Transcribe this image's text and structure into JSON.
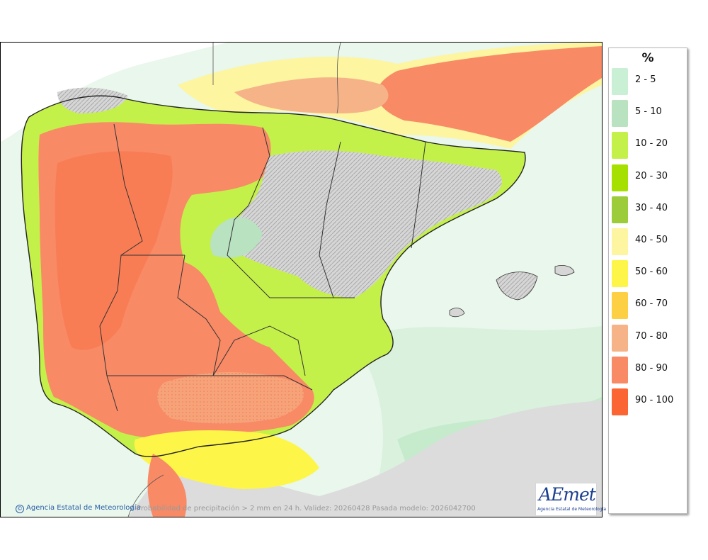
{
  "legend": {
    "title": "%",
    "items": [
      {
        "label": "2 - 5",
        "color": "#c9f0d4"
      },
      {
        "label": "5 - 10",
        "color": "#b8e2c0"
      },
      {
        "label": "10 - 20",
        "color": "#c4f04a"
      },
      {
        "label": "20 - 30",
        "color": "#a6e000"
      },
      {
        "label": "30 - 40",
        "color": "#9ccc3a"
      },
      {
        "label": "40 - 50",
        "color": "#fdf5a0"
      },
      {
        "label": "50 - 60",
        "color": "#fdf548"
      },
      {
        "label": "60 - 70",
        "color": "#fcd042"
      },
      {
        "label": "70 - 80",
        "color": "#f6b388"
      },
      {
        "label": "80 - 90",
        "color": "#f88a66"
      },
      {
        "label": "90 - 100",
        "color": "#fb6534"
      }
    ]
  },
  "footer": {
    "credit": "Agencia Estatal de Meteorología",
    "credit_icon": "©",
    "caption": "Probabilidad de precipitación > 2 mm en 24 h. Validez: 20260428 Pasada modelo: 2026042700"
  },
  "logo": {
    "mark": "AEmet",
    "subtitle": "Agencia Estatal de Meteorología"
  }
}
